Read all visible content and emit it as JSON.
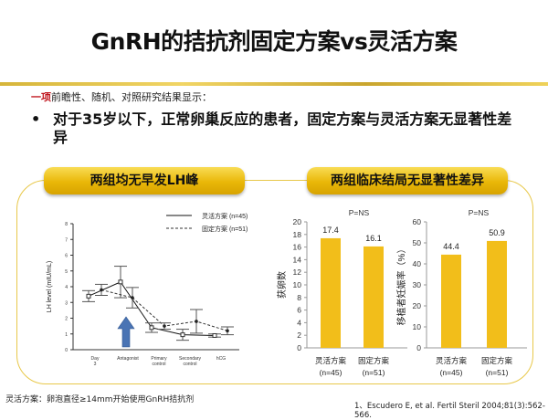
{
  "title": "GnRH的拮抗剂固定方案vs灵活方案",
  "intro": {
    "highlight": "一项",
    "rest": "前瞻性、随机、对照研究结果显示："
  },
  "bullet": {
    "marker": "•",
    "text": "对于35岁以下，正常卵巢反应的患者，固定方案与灵活方案无显著性差异"
  },
  "panels": {
    "left_title": "两组均无早发LH峰",
    "right_title": "两组临床结局无显著性差异"
  },
  "footnote": "灵活方案：卵泡直径≥14mm开始使用GnRH拮抗剂",
  "citation": "1、Escudero E, et al. Fertil Steril 2004;81(3):562-566.",
  "colors": {
    "bar": "#f2be1a",
    "accent": "#e8c84a",
    "arrow": "#4a74b4",
    "red": "#c0161e"
  },
  "chart_data": [
    {
      "type": "line",
      "ylabel": "LH level (mIU/mL)",
      "ylim": [
        0,
        8
      ],
      "yticks": [
        0,
        1,
        2,
        3,
        4,
        5,
        6,
        7,
        8
      ],
      "categories": [
        "Day 3",
        "Antagonist",
        "Primary control",
        "Secondary control",
        "hCG"
      ],
      "legend": [
        "灵活方案 (n=45)",
        "固定方案 (n=51)"
      ],
      "series": [
        {
          "name": "灵活方案 (n=45)",
          "style": "solid",
          "values": [
            3.4,
            4.3,
            1.4,
            0.95,
            0.9
          ],
          "err": [
            0.35,
            1.0,
            0.3,
            0.35,
            0.1
          ]
        },
        {
          "name": "固定方案 (n=51)",
          "style": "dashed",
          "values": [
            3.8,
            3.3,
            1.5,
            1.8,
            1.2
          ],
          "err": [
            0.35,
            0.65,
            0.2,
            0.75,
            0.25
          ]
        }
      ],
      "annotation": "arrow at Antagonist"
    },
    {
      "type": "bar",
      "title": "P=NS",
      "ylabel": "获卵数",
      "ylim": [
        0,
        20
      ],
      "yticks": [
        0,
        2,
        4,
        6,
        8,
        10,
        12,
        14,
        16,
        18,
        20
      ],
      "categories": [
        [
          "灵活方案",
          "(n=45)"
        ],
        [
          "固定方案",
          "(n=51)"
        ]
      ],
      "values": [
        17.4,
        16.1
      ],
      "labels": [
        "17.4",
        "16.1"
      ]
    },
    {
      "type": "bar",
      "title": "P=NS",
      "ylabel": "移植者妊娠率（%）",
      "ylim": [
        0,
        60
      ],
      "yticks": [
        0,
        10,
        20,
        30,
        40,
        50,
        60
      ],
      "categories": [
        [
          "灵活方案",
          "(n=45)"
        ],
        [
          "固定方案",
          "(n=51)"
        ]
      ],
      "values": [
        44.4,
        50.9
      ],
      "labels": [
        "44.4",
        "50.9"
      ]
    }
  ]
}
